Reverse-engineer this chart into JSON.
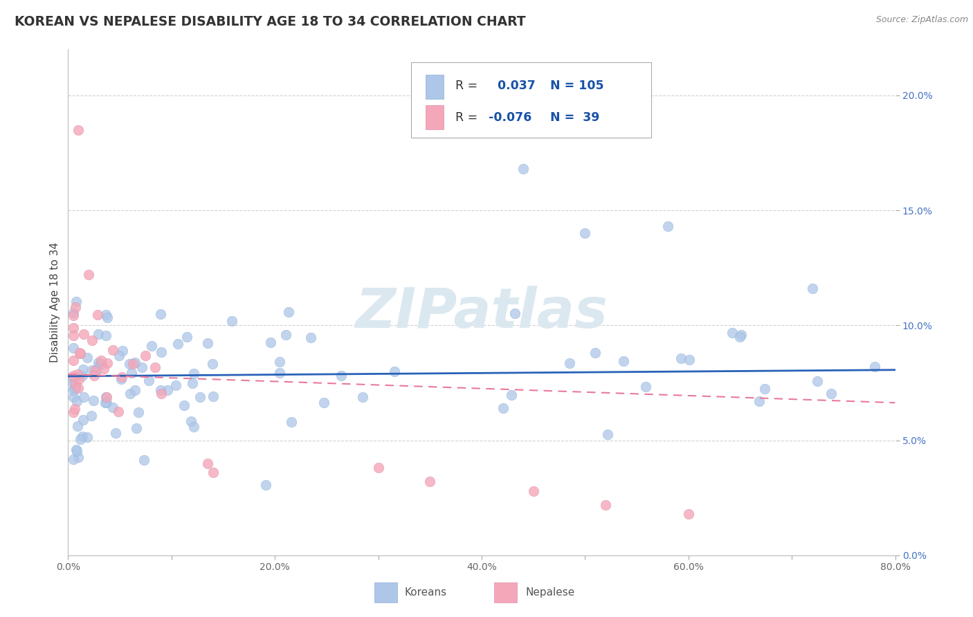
{
  "title": "KOREAN VS NEPALESE DISABILITY AGE 18 TO 34 CORRELATION CHART",
  "source": "Source: ZipAtlas.com",
  "ylabel": "Disability Age 18 to 34",
  "xlim": [
    0.0,
    0.8
  ],
  "ylim": [
    0.0,
    0.22
  ],
  "xticks": [
    0.0,
    0.1,
    0.2,
    0.3,
    0.4,
    0.5,
    0.6,
    0.7,
    0.8
  ],
  "yticks": [
    0.0,
    0.05,
    0.1,
    0.15,
    0.2
  ],
  "xtick_labels": [
    "0.0%",
    "",
    "20.0%",
    "",
    "40.0%",
    "",
    "60.0%",
    "",
    "80.0%"
  ],
  "ytick_labels": [
    "0.0%",
    "5.0%",
    "10.0%",
    "15.0%",
    "20.0%"
  ],
  "korean_R": 0.037,
  "korean_N": 105,
  "nepalese_R": -0.076,
  "nepalese_N": 39,
  "korean_color": "#aec6e8",
  "nepalese_color": "#f4a7b9",
  "korean_line_color": "#2962b8",
  "nepalese_line_color": "#e87a9a",
  "background_color": "#ffffff",
  "grid_color": "#cccccc",
  "title_color": "#333333",
  "source_color": "#888888",
  "legend_text_color": "#1a52a8",
  "watermark_color": "#dce8f0",
  "bottom_legend_text_color": "#555555"
}
